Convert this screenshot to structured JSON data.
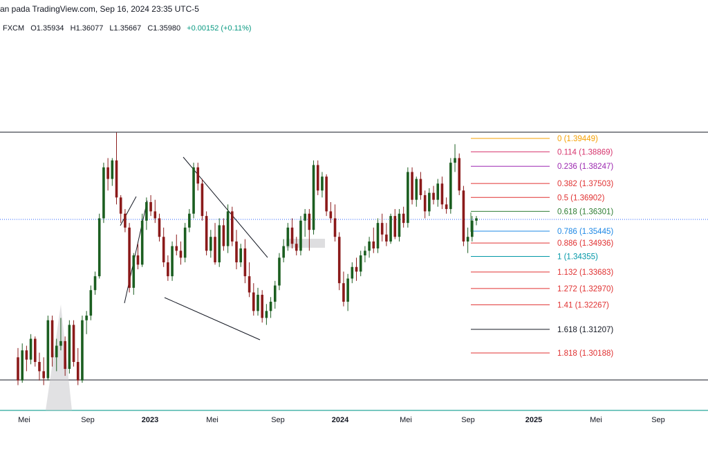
{
  "header": {
    "attribution": "an pada TradingView.com, Sep 16, 2024 23:35 UTC-5",
    "source": "FXCM",
    "open": "O1.35934",
    "high": "H1.36077",
    "low": "L1.35667",
    "close": "C1.35980",
    "change": "+0.00152 (+0.11%)"
  },
  "colors": {
    "up": "#1b5e20",
    "down": "#8b1a1a",
    "axis": "#131722",
    "baseline": "#26a69a"
  },
  "chart_data": {
    "type": "candlestick",
    "title": "",
    "x_ticks": [
      "Mei",
      "Sep",
      "2023",
      "Mei",
      "Sep",
      "2024",
      "Mei",
      "Sep",
      "2025",
      "Mei",
      "Sep"
    ],
    "y_range": [
      1.288,
      1.412
    ],
    "last_price": 1.3598,
    "fib_levels": [
      {
        "ratio": "0",
        "price": "1.39449",
        "color": "#f59f00"
      },
      {
        "ratio": "0.114",
        "price": "1.38869",
        "color": "#d6336c"
      },
      {
        "ratio": "0.236",
        "price": "1.38247",
        "color": "#9c27b0"
      },
      {
        "ratio": "0.382",
        "price": "1.37503",
        "color": "#e03131"
      },
      {
        "ratio": "0.5",
        "price": "1.36902",
        "color": "#e03131"
      },
      {
        "ratio": "0.618",
        "price": "1.36301",
        "color": "#2e7d32"
      },
      {
        "ratio": "0.786",
        "price": "1.35445",
        "color": "#1e88e5"
      },
      {
        "ratio": "0.886",
        "price": "1.34936",
        "color": "#e03131"
      },
      {
        "ratio": "1",
        "price": "1.34355",
        "color": "#0097a7"
      },
      {
        "ratio": "1.132",
        "price": "1.33683",
        "color": "#e03131"
      },
      {
        "ratio": "1.272",
        "price": "1.32970",
        "color": "#e03131"
      },
      {
        "ratio": "1.41",
        "price": "1.32267",
        "color": "#e03131"
      },
      {
        "ratio": "1.618",
        "price": "1.31207",
        "color": "#131722"
      },
      {
        "ratio": "1.818",
        "price": "1.30188",
        "color": "#e03131"
      }
    ],
    "candles_weekly": [
      {
        "o": 1.3,
        "h": 1.304,
        "l": 1.288,
        "c": 1.29
      },
      {
        "o": 1.29,
        "h": 1.306,
        "l": 1.289,
        "c": 1.303
      },
      {
        "o": 1.303,
        "h": 1.305,
        "l": 1.294,
        "c": 1.299
      },
      {
        "o": 1.299,
        "h": 1.31,
        "l": 1.297,
        "c": 1.308
      },
      {
        "o": 1.308,
        "h": 1.309,
        "l": 1.296,
        "c": 1.298
      },
      {
        "o": 1.298,
        "h": 1.302,
        "l": 1.29,
        "c": 1.294
      },
      {
        "o": 1.294,
        "h": 1.3,
        "l": 1.288,
        "c": 1.291
      },
      {
        "o": 1.291,
        "h": 1.318,
        "l": 1.29,
        "c": 1.316
      },
      {
        "o": 1.316,
        "h": 1.318,
        "l": 1.296,
        "c": 1.3
      },
      {
        "o": 1.3,
        "h": 1.308,
        "l": 1.294,
        "c": 1.305
      },
      {
        "o": 1.305,
        "h": 1.317,
        "l": 1.303,
        "c": 1.307
      },
      {
        "o": 1.307,
        "h": 1.309,
        "l": 1.292,
        "c": 1.295
      },
      {
        "o": 1.295,
        "h": 1.316,
        "l": 1.293,
        "c": 1.314
      },
      {
        "o": 1.314,
        "h": 1.316,
        "l": 1.296,
        "c": 1.298
      },
      {
        "o": 1.298,
        "h": 1.304,
        "l": 1.288,
        "c": 1.29
      },
      {
        "o": 1.29,
        "h": 1.318,
        "l": 1.289,
        "c": 1.316
      },
      {
        "o": 1.316,
        "h": 1.32,
        "l": 1.31,
        "c": 1.318
      },
      {
        "o": 1.318,
        "h": 1.331,
        "l": 1.316,
        "c": 1.329
      },
      {
        "o": 1.329,
        "h": 1.337,
        "l": 1.327,
        "c": 1.335
      },
      {
        "o": 1.335,
        "h": 1.362,
        "l": 1.334,
        "c": 1.36
      },
      {
        "o": 1.36,
        "h": 1.384,
        "l": 1.358,
        "c": 1.382
      },
      {
        "o": 1.382,
        "h": 1.386,
        "l": 1.372,
        "c": 1.377
      },
      {
        "o": 1.377,
        "h": 1.386,
        "l": 1.374,
        "c": 1.385
      },
      {
        "o": 1.385,
        "h": 1.397,
        "l": 1.366,
        "c": 1.369
      },
      {
        "o": 1.369,
        "h": 1.37,
        "l": 1.358,
        "c": 1.362
      },
      {
        "o": 1.362,
        "h": 1.364,
        "l": 1.354,
        "c": 1.356
      },
      {
        "o": 1.356,
        "h": 1.358,
        "l": 1.328,
        "c": 1.33
      },
      {
        "o": 1.33,
        "h": 1.345,
        "l": 1.327,
        "c": 1.344
      },
      {
        "o": 1.344,
        "h": 1.349,
        "l": 1.338,
        "c": 1.34
      },
      {
        "o": 1.34,
        "h": 1.362,
        "l": 1.339,
        "c": 1.359
      },
      {
        "o": 1.359,
        "h": 1.369,
        "l": 1.355,
        "c": 1.367
      },
      {
        "o": 1.367,
        "h": 1.37,
        "l": 1.361,
        "c": 1.363
      },
      {
        "o": 1.363,
        "h": 1.368,
        "l": 1.358,
        "c": 1.36
      },
      {
        "o": 1.36,
        "h": 1.362,
        "l": 1.35,
        "c": 1.352
      },
      {
        "o": 1.352,
        "h": 1.356,
        "l": 1.339,
        "c": 1.341
      },
      {
        "o": 1.341,
        "h": 1.344,
        "l": 1.333,
        "c": 1.335
      },
      {
        "o": 1.335,
        "h": 1.35,
        "l": 1.333,
        "c": 1.348
      },
      {
        "o": 1.348,
        "h": 1.353,
        "l": 1.344,
        "c": 1.346
      },
      {
        "o": 1.346,
        "h": 1.35,
        "l": 1.34,
        "c": 1.343
      },
      {
        "o": 1.343,
        "h": 1.358,
        "l": 1.341,
        "c": 1.356
      },
      {
        "o": 1.356,
        "h": 1.364,
        "l": 1.354,
        "c": 1.362
      },
      {
        "o": 1.362,
        "h": 1.384,
        "l": 1.36,
        "c": 1.382
      },
      {
        "o": 1.382,
        "h": 1.384,
        "l": 1.372,
        "c": 1.375
      },
      {
        "o": 1.375,
        "h": 1.377,
        "l": 1.359,
        "c": 1.361
      },
      {
        "o": 1.361,
        "h": 1.363,
        "l": 1.344,
        "c": 1.346
      },
      {
        "o": 1.346,
        "h": 1.355,
        "l": 1.343,
        "c": 1.352
      },
      {
        "o": 1.352,
        "h": 1.358,
        "l": 1.34,
        "c": 1.341
      },
      {
        "o": 1.341,
        "h": 1.36,
        "l": 1.339,
        "c": 1.357
      },
      {
        "o": 1.357,
        "h": 1.36,
        "l": 1.346,
        "c": 1.348
      },
      {
        "o": 1.348,
        "h": 1.366,
        "l": 1.345,
        "c": 1.363
      },
      {
        "o": 1.363,
        "h": 1.365,
        "l": 1.348,
        "c": 1.35
      },
      {
        "o": 1.35,
        "h": 1.355,
        "l": 1.338,
        "c": 1.341
      },
      {
        "o": 1.341,
        "h": 1.349,
        "l": 1.339,
        "c": 1.347
      },
      {
        "o": 1.347,
        "h": 1.351,
        "l": 1.332,
        "c": 1.335
      },
      {
        "o": 1.335,
        "h": 1.341,
        "l": 1.326,
        "c": 1.328
      },
      {
        "o": 1.328,
        "h": 1.332,
        "l": 1.318,
        "c": 1.32
      },
      {
        "o": 1.32,
        "h": 1.33,
        "l": 1.318,
        "c": 1.327
      },
      {
        "o": 1.327,
        "h": 1.329,
        "l": 1.315,
        "c": 1.317
      },
      {
        "o": 1.317,
        "h": 1.323,
        "l": 1.314,
        "c": 1.32
      },
      {
        "o": 1.32,
        "h": 1.326,
        "l": 1.317,
        "c": 1.324
      },
      {
        "o": 1.324,
        "h": 1.333,
        "l": 1.321,
        "c": 1.331
      },
      {
        "o": 1.331,
        "h": 1.345,
        "l": 1.329,
        "c": 1.343
      },
      {
        "o": 1.343,
        "h": 1.351,
        "l": 1.341,
        "c": 1.348
      },
      {
        "o": 1.348,
        "h": 1.358,
        "l": 1.346,
        "c": 1.356
      },
      {
        "o": 1.356,
        "h": 1.36,
        "l": 1.347,
        "c": 1.349
      },
      {
        "o": 1.349,
        "h": 1.352,
        "l": 1.344,
        "c": 1.346
      },
      {
        "o": 1.346,
        "h": 1.361,
        "l": 1.344,
        "c": 1.359
      },
      {
        "o": 1.359,
        "h": 1.364,
        "l": 1.352,
        "c": 1.362
      },
      {
        "o": 1.362,
        "h": 1.364,
        "l": 1.346,
        "c": 1.355
      },
      {
        "o": 1.355,
        "h": 1.385,
        "l": 1.353,
        "c": 1.383
      },
      {
        "o": 1.383,
        "h": 1.385,
        "l": 1.37,
        "c": 1.372
      },
      {
        "o": 1.372,
        "h": 1.38,
        "l": 1.369,
        "c": 1.378
      },
      {
        "o": 1.378,
        "h": 1.379,
        "l": 1.361,
        "c": 1.363
      },
      {
        "o": 1.363,
        "h": 1.367,
        "l": 1.358,
        "c": 1.36
      },
      {
        "o": 1.36,
        "h": 1.366,
        "l": 1.35,
        "c": 1.352
      },
      {
        "o": 1.352,
        "h": 1.354,
        "l": 1.329,
        "c": 1.332
      },
      {
        "o": 1.332,
        "h": 1.337,
        "l": 1.322,
        "c": 1.324
      },
      {
        "o": 1.324,
        "h": 1.336,
        "l": 1.32,
        "c": 1.334
      },
      {
        "o": 1.334,
        "h": 1.341,
        "l": 1.332,
        "c": 1.339
      },
      {
        "o": 1.339,
        "h": 1.343,
        "l": 1.333,
        "c": 1.337
      },
      {
        "o": 1.337,
        "h": 1.346,
        "l": 1.335,
        "c": 1.344
      },
      {
        "o": 1.344,
        "h": 1.348,
        "l": 1.341,
        "c": 1.346
      },
      {
        "o": 1.346,
        "h": 1.352,
        "l": 1.343,
        "c": 1.35
      },
      {
        "o": 1.35,
        "h": 1.356,
        "l": 1.345,
        "c": 1.347
      },
      {
        "o": 1.347,
        "h": 1.36,
        "l": 1.345,
        "c": 1.358
      },
      {
        "o": 1.358,
        "h": 1.362,
        "l": 1.35,
        "c": 1.353
      },
      {
        "o": 1.353,
        "h": 1.358,
        "l": 1.348,
        "c": 1.35
      },
      {
        "o": 1.35,
        "h": 1.362,
        "l": 1.349,
        "c": 1.361
      },
      {
        "o": 1.361,
        "h": 1.364,
        "l": 1.351,
        "c": 1.352
      },
      {
        "o": 1.352,
        "h": 1.364,
        "l": 1.35,
        "c": 1.362
      },
      {
        "o": 1.362,
        "h": 1.365,
        "l": 1.356,
        "c": 1.358
      },
      {
        "o": 1.358,
        "h": 1.382,
        "l": 1.356,
        "c": 1.38
      },
      {
        "o": 1.38,
        "h": 1.382,
        "l": 1.366,
        "c": 1.368
      },
      {
        "o": 1.368,
        "h": 1.378,
        "l": 1.365,
        "c": 1.377
      },
      {
        "o": 1.377,
        "h": 1.38,
        "l": 1.368,
        "c": 1.37
      },
      {
        "o": 1.37,
        "h": 1.372,
        "l": 1.36,
        "c": 1.363
      },
      {
        "o": 1.363,
        "h": 1.373,
        "l": 1.361,
        "c": 1.371
      },
      {
        "o": 1.371,
        "h": 1.374,
        "l": 1.366,
        "c": 1.368
      },
      {
        "o": 1.368,
        "h": 1.377,
        "l": 1.365,
        "c": 1.375
      },
      {
        "o": 1.375,
        "h": 1.378,
        "l": 1.364,
        "c": 1.366
      },
      {
        "o": 1.366,
        "h": 1.369,
        "l": 1.362,
        "c": 1.364
      },
      {
        "o": 1.364,
        "h": 1.386,
        "l": 1.362,
        "c": 1.384
      },
      {
        "o": 1.384,
        "h": 1.392,
        "l": 1.38,
        "c": 1.386
      },
      {
        "o": 1.386,
        "h": 1.388,
        "l": 1.37,
        "c": 1.372
      },
      {
        "o": 1.372,
        "h": 1.374,
        "l": 1.348,
        "c": 1.35
      },
      {
        "o": 1.35,
        "h": 1.356,
        "l": 1.345,
        "c": 1.352
      },
      {
        "o": 1.352,
        "h": 1.361,
        "l": 1.35,
        "c": 1.359
      },
      {
        "o": 1.359,
        "h": 1.361,
        "l": 1.357,
        "c": 1.36
      }
    ]
  }
}
